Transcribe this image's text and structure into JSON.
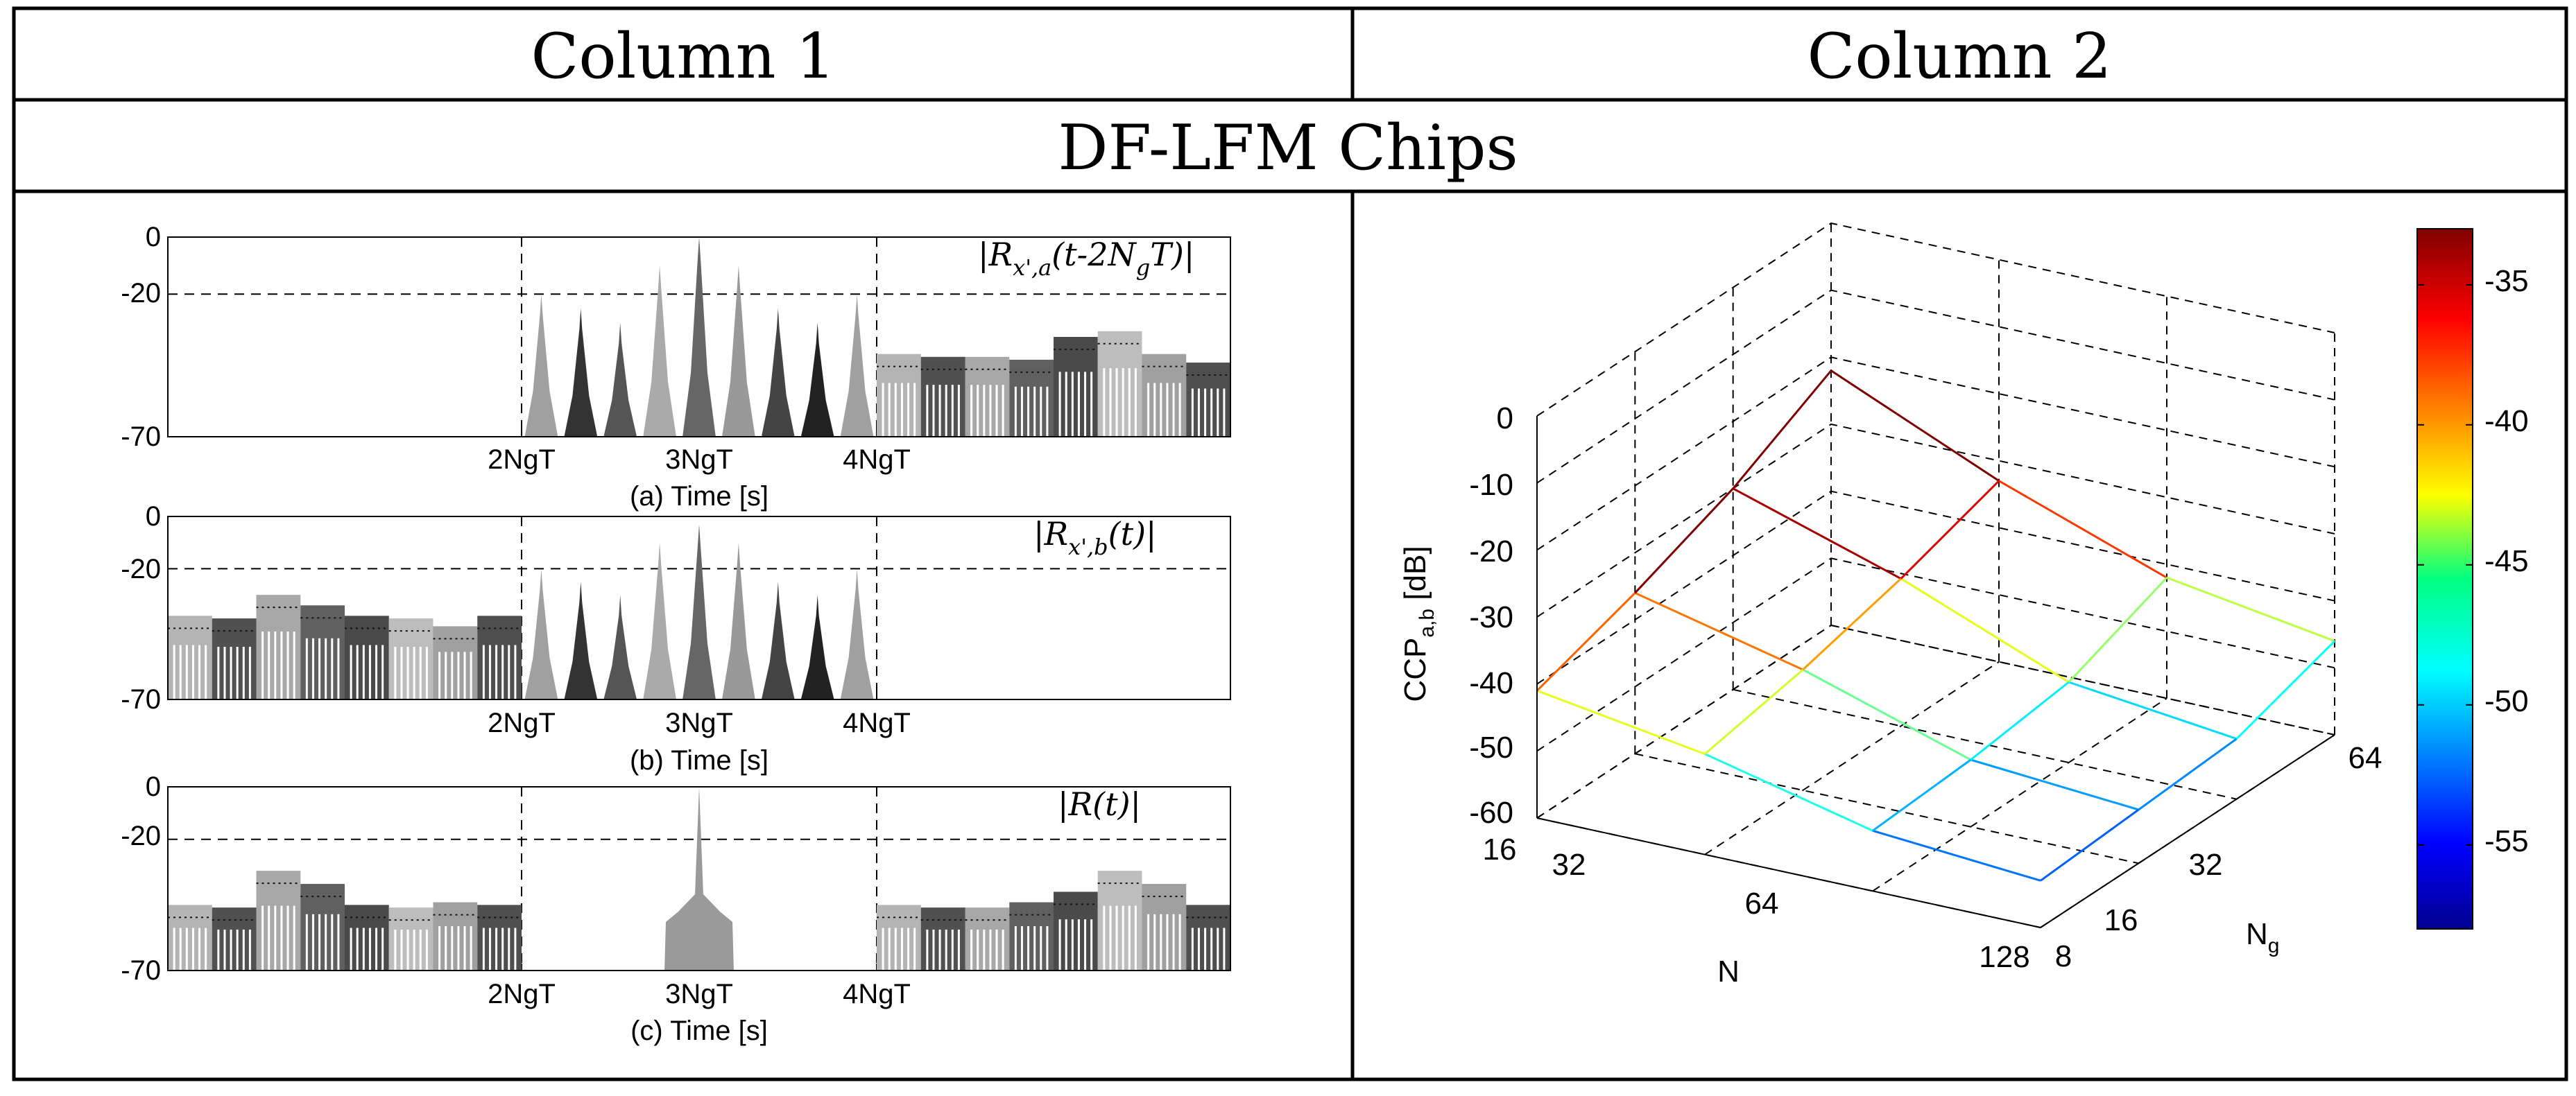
{
  "table": {
    "column1_header": "Column 1",
    "column2_header": "Column 2",
    "row_title": "DF-LFM Chips"
  },
  "chart_data": [
    {
      "type": "area",
      "panel": "a",
      "title_pre": "|R",
      "title_sub": "x',a",
      "title_mid": "(t-2N",
      "title_sub2": "g",
      "title_post": "T)|",
      "xlabel": "(a) Time [s]",
      "ylim": [
        -70,
        0
      ],
      "yticks": [
        "0",
        "-20",
        "-70"
      ],
      "xticks": [
        "2NgT",
        "3NgT",
        "4NgT"
      ],
      "grid_y": -20,
      "sidelobe_level_dB": -40,
      "segments": [
        {
          "region": "before 2NgT",
          "level_dB": -70
        },
        {
          "region": "2NgT to 4NgT",
          "peaks_dB": [
            -20,
            -25,
            -30,
            -10,
            0,
            -10,
            -25,
            -30,
            -20
          ]
        },
        {
          "region": "after 4NgT",
          "levels_dB": [
            -41,
            -42,
            -42,
            -43,
            -35,
            -33,
            -41,
            -44
          ]
        }
      ]
    },
    {
      "type": "area",
      "panel": "b",
      "title_pre": "|R",
      "title_sub": "x',b",
      "title_post": "(t)|",
      "xlabel": "(b) Time [s]",
      "ylim": [
        -70,
        0
      ],
      "yticks": [
        "0",
        "-20",
        "-70"
      ],
      "xticks": [
        "2NgT",
        "3NgT",
        "4NgT"
      ],
      "grid_y": -20,
      "segments": [
        {
          "region": "before 2NgT",
          "levels_dB": [
            -38,
            -39,
            -30,
            -34,
            -38,
            -39,
            -42,
            -38
          ]
        },
        {
          "region": "2NgT to 4NgT",
          "peaks_dB": [
            -20,
            -25,
            -30,
            -10,
            -3,
            -10,
            -25,
            -30,
            -20
          ]
        },
        {
          "region": "after 4NgT",
          "level_dB": -70
        }
      ]
    },
    {
      "type": "area",
      "panel": "c",
      "title": "|R(t)|",
      "xlabel": "(c) Time [s]",
      "ylim": [
        -70,
        0
      ],
      "yticks": [
        "0",
        "-20",
        "-70"
      ],
      "xticks": [
        "2NgT",
        "3NgT",
        "4NgT"
      ],
      "grid_y": -20,
      "segments": [
        {
          "region": "before 2NgT",
          "levels_dB": [
            -45,
            -46,
            -32,
            -37,
            -45,
            -46,
            -44,
            -45
          ]
        },
        {
          "region": "at 3NgT",
          "peak_dB": 0
        },
        {
          "region": "after 4NgT",
          "levels_dB": [
            -45,
            -46,
            -46,
            -44,
            -40,
            -32,
            -37,
            -45
          ]
        }
      ]
    },
    {
      "type": "surface",
      "panel": "3d",
      "zlabel": "CCP",
      "zlabel_sub": "a,b",
      "zlabel_unit": " [dB]",
      "xlabel": "N",
      "ylabel": "N",
      "ylabel_sub": "g",
      "x_ticks": [
        "16",
        "32",
        "64",
        "128"
      ],
      "y_ticks": [
        "8",
        "16",
        "32",
        "64"
      ],
      "z_ticks": [
        "0",
        "-10",
        "-20",
        "-30",
        "-40",
        "-50",
        "-60"
      ],
      "zlim": [
        -60,
        0
      ],
      "N_values": [
        16,
        32,
        64,
        128
      ],
      "Ng_values": [
        8,
        16,
        32,
        64
      ],
      "z_dB": [
        [
          -41,
          -45,
          -51,
          -53
        ],
        [
          -36,
          -42,
          -50,
          -52
        ],
        [
          -30,
          -38,
          -48,
          -51
        ],
        [
          -22,
          -33,
          -42,
          -46
        ]
      ],
      "colorbar_ticks": [
        "-35",
        "-40",
        "-45",
        "-50",
        "-55"
      ],
      "colorbar_range": [
        -58,
        -33
      ]
    }
  ]
}
